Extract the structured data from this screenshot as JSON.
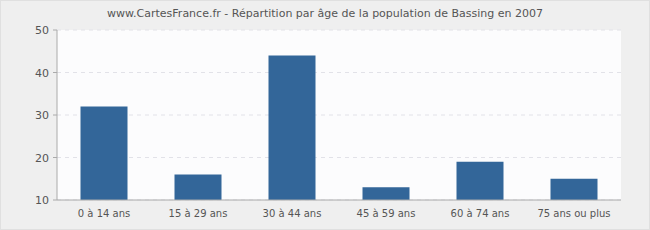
{
  "chart_data": {
    "type": "bar",
    "title": "www.CartesFrance.fr - Répartition par âge de la population de Bassing en 2007",
    "categories": [
      "0 à 14 ans",
      "15 à 29 ans",
      "30 à 44 ans",
      "45 à 59 ans",
      "60 à 74 ans",
      "75 ans ou plus"
    ],
    "values": [
      32,
      16,
      44,
      13,
      19,
      15
    ],
    "color": "#336699",
    "ylim": [
      10,
      50
    ],
    "yticks": [
      10,
      20,
      30,
      40,
      50
    ],
    "grid": true
  }
}
